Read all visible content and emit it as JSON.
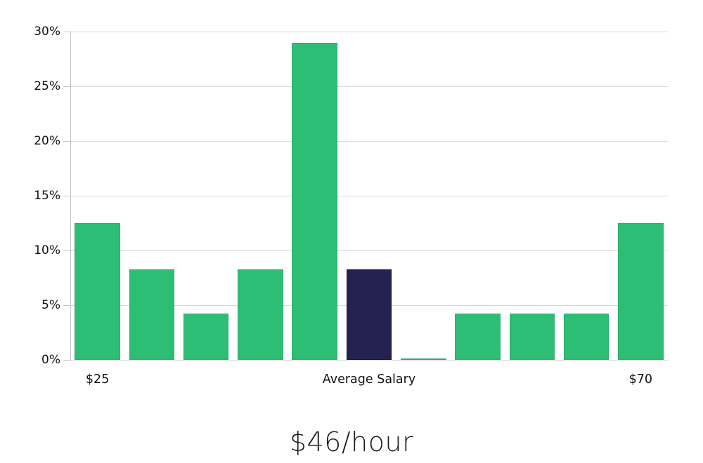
{
  "chart_data": {
    "type": "bar",
    "title": "$46/hour",
    "num_bars": 11,
    "values": [
      12.5,
      8.3,
      4.2,
      8.3,
      29,
      8.3,
      0.15,
      4.2,
      4.2,
      4.2,
      12.5
    ],
    "highlight_index": 5,
    "highlight_meaning": "Average Salary",
    "ylim": [
      0,
      30
    ],
    "grid": "horizontal",
    "legend": "none",
    "y_ticks": [
      {
        "value": 0,
        "label": "0%"
      },
      {
        "value": 5,
        "label": "5%"
      },
      {
        "value": 10,
        "label": "10%"
      },
      {
        "value": 15,
        "label": "15%"
      },
      {
        "value": 20,
        "label": "20%"
      },
      {
        "value": 25,
        "label": "25%"
      },
      {
        "value": 30,
        "label": "30%"
      }
    ],
    "x_tick_labels": [
      {
        "slot": 0,
        "label": "$25"
      },
      {
        "slot": 5,
        "label": "Average Salary"
      },
      {
        "slot": 10,
        "label": "$70"
      }
    ],
    "colors": {
      "bar": "#2dbd74",
      "bar_border": "#29b06c",
      "highlight": "#262250",
      "highlight_border": "#1a1738",
      "gridline": "#d9d9d9",
      "axis": "#c6c6c6",
      "tick_text": "#111111",
      "title_text": "#1c1c1c"
    }
  }
}
